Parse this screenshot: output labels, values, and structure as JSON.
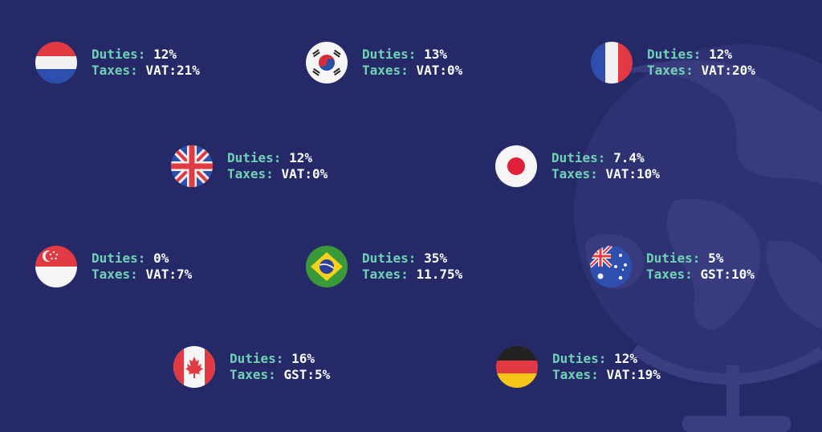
{
  "colors": {
    "background": "#262968",
    "label": "#6fd2b4",
    "value": "#ffffff"
  },
  "labels": {
    "duties": "Duties:",
    "taxes": "Taxes:"
  },
  "countries": [
    {
      "flag": "netherlands-flag-icon",
      "duties": "12%",
      "taxes": "VAT:21%"
    },
    {
      "flag": "south-korea-flag-icon",
      "duties": "13%",
      "taxes": "VAT:0%"
    },
    {
      "flag": "france-flag-icon",
      "duties": "12%",
      "taxes": "VAT:20%"
    },
    {
      "flag": "uk-flag-icon",
      "duties": "12%",
      "taxes": "VAT:0%"
    },
    {
      "flag": "japan-flag-icon",
      "duties": "7.4%",
      "taxes": "VAT:10%"
    },
    {
      "flag": "singapore-flag-icon",
      "duties": "0%",
      "taxes": "VAT:7%"
    },
    {
      "flag": "brazil-flag-icon",
      "duties": "35%",
      "taxes": "11.75%"
    },
    {
      "flag": "australia-flag-icon",
      "duties": "5%",
      "taxes": "GST:10%"
    },
    {
      "flag": "canada-flag-icon",
      "duties": "16%",
      "taxes": "GST:5%"
    },
    {
      "flag": "germany-flag-icon",
      "duties": "12%",
      "taxes": "VAT:19%"
    }
  ]
}
